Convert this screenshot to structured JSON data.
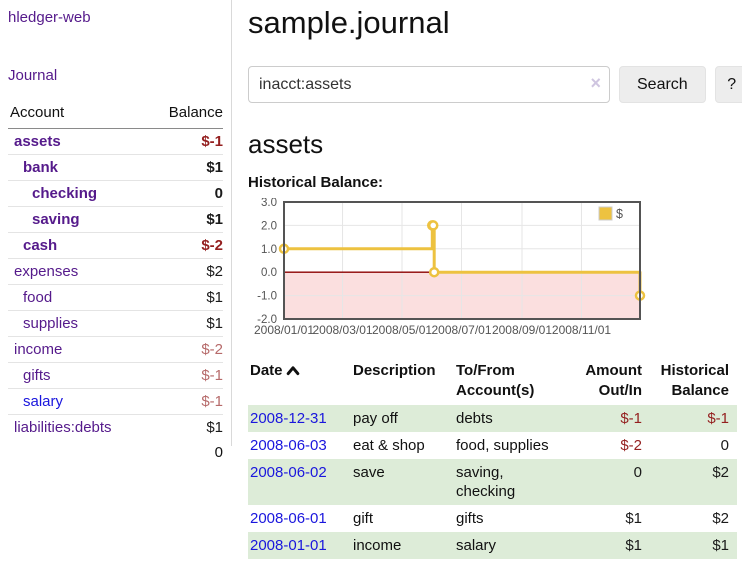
{
  "app": {
    "title": "hledger-web",
    "nav_journal": "Journal"
  },
  "sidebar": {
    "headers": {
      "account": "Account",
      "balance": "Balance"
    },
    "accounts": [
      {
        "name": "assets",
        "level": 0,
        "bold": true,
        "balance": "$-1",
        "balance_style": "neg"
      },
      {
        "name": "bank",
        "level": 1,
        "bold": true,
        "balance": "$1",
        "balance_style": "pos"
      },
      {
        "name": "checking",
        "level": 2,
        "bold": true,
        "balance": "0",
        "balance_style": "pos"
      },
      {
        "name": "saving",
        "level": 2,
        "bold": true,
        "balance": "$1",
        "balance_style": "pos"
      },
      {
        "name": "cash",
        "level": 1,
        "bold": true,
        "balance": "$-2",
        "balance_style": "neg"
      },
      {
        "name": "expenses",
        "level": 0,
        "bold": false,
        "balance": "$2",
        "balance_style": "pos"
      },
      {
        "name": "food",
        "level": 1,
        "bold": false,
        "balance": "$1",
        "balance_style": "pos"
      },
      {
        "name": "supplies",
        "level": 1,
        "bold": false,
        "balance": "$1",
        "balance_style": "pos"
      },
      {
        "name": "income",
        "level": 0,
        "bold": false,
        "balance": "$-2",
        "balance_style": "neg-dim"
      },
      {
        "name": "gifts",
        "level": 1,
        "bold": false,
        "balance": "$-1",
        "balance_style": "neg-dim"
      },
      {
        "name": "salary",
        "level": 1,
        "bold": false,
        "link_style": "blue",
        "balance": "$-1",
        "balance_style": "neg-dim"
      },
      {
        "name": "liabilities:debts",
        "level": 0,
        "bold": false,
        "balance": "$1",
        "balance_style": "pos"
      }
    ],
    "total": "0"
  },
  "header": {
    "title": "sample.journal"
  },
  "search": {
    "value": "inacct:assets",
    "clear_icon": "×",
    "button_label": "Search",
    "help_label": "?"
  },
  "account_page": {
    "heading": "assets",
    "chart_label": "Historical Balance:"
  },
  "chart_data": {
    "type": "line",
    "step": true,
    "title": "Historical Balance",
    "series": [
      {
        "name": "$",
        "color": "#EDC240",
        "points": [
          {
            "x": "2008-01-01",
            "y": 1
          },
          {
            "x": "2008-06-01",
            "y": 2
          },
          {
            "x": "2008-06-02",
            "y": 2
          },
          {
            "x": "2008-06-03",
            "y": 0
          },
          {
            "x": "2008-12-31",
            "y": -1
          }
        ]
      }
    ],
    "x_ticks": [
      "2008/01/01",
      "2008/03/01",
      "2008/05/01",
      "2008/07/01",
      "2008/09/01",
      "2008/11/01"
    ],
    "y_ticks": [
      3.0,
      2.0,
      1.0,
      0.0,
      -1.0,
      -2.0
    ],
    "ylim": [
      -2,
      3
    ],
    "xlim": [
      "2008-01-01",
      "2008-12-31"
    ],
    "grid": true,
    "legend_position": "top-right",
    "zero_line_color": "#8b0000",
    "below_zero_fill": "#fbdfdf",
    "grid_color": "#e6e6e6",
    "border_color": "#545454",
    "tick_label_color": "#545454"
  },
  "register": {
    "headers": {
      "date": "Date",
      "description": "Description",
      "account": "To/From Account(s)",
      "amount": "Amount Out/In",
      "balance": "Historical Balance"
    },
    "rows": [
      {
        "date": "2008-12-31",
        "description": "pay off",
        "accounts": "debts",
        "amount": "$-1",
        "amount_style": "neg",
        "balance": "$-1",
        "balance_style": "neg",
        "shaded": true
      },
      {
        "date": "2008-06-03",
        "description": "eat & shop",
        "accounts": "food, supplies",
        "amount": "$-2",
        "amount_style": "neg",
        "balance": "0",
        "balance_style": "pos",
        "shaded": false
      },
      {
        "date": "2008-06-02",
        "description": "save",
        "accounts": "saving, checking",
        "amount": "0",
        "amount_style": "pos",
        "balance": "$2",
        "balance_style": "pos",
        "shaded": true
      },
      {
        "date": "2008-06-01",
        "description": "gift",
        "accounts": "gifts",
        "amount": "$1",
        "amount_style": "pos",
        "balance": "$2",
        "balance_style": "pos",
        "shaded": false
      },
      {
        "date": "2008-01-01",
        "description": "income",
        "accounts": "salary",
        "amount": "$1",
        "amount_style": "pos",
        "balance": "$1",
        "balance_style": "pos",
        "shaded": true
      }
    ]
  }
}
